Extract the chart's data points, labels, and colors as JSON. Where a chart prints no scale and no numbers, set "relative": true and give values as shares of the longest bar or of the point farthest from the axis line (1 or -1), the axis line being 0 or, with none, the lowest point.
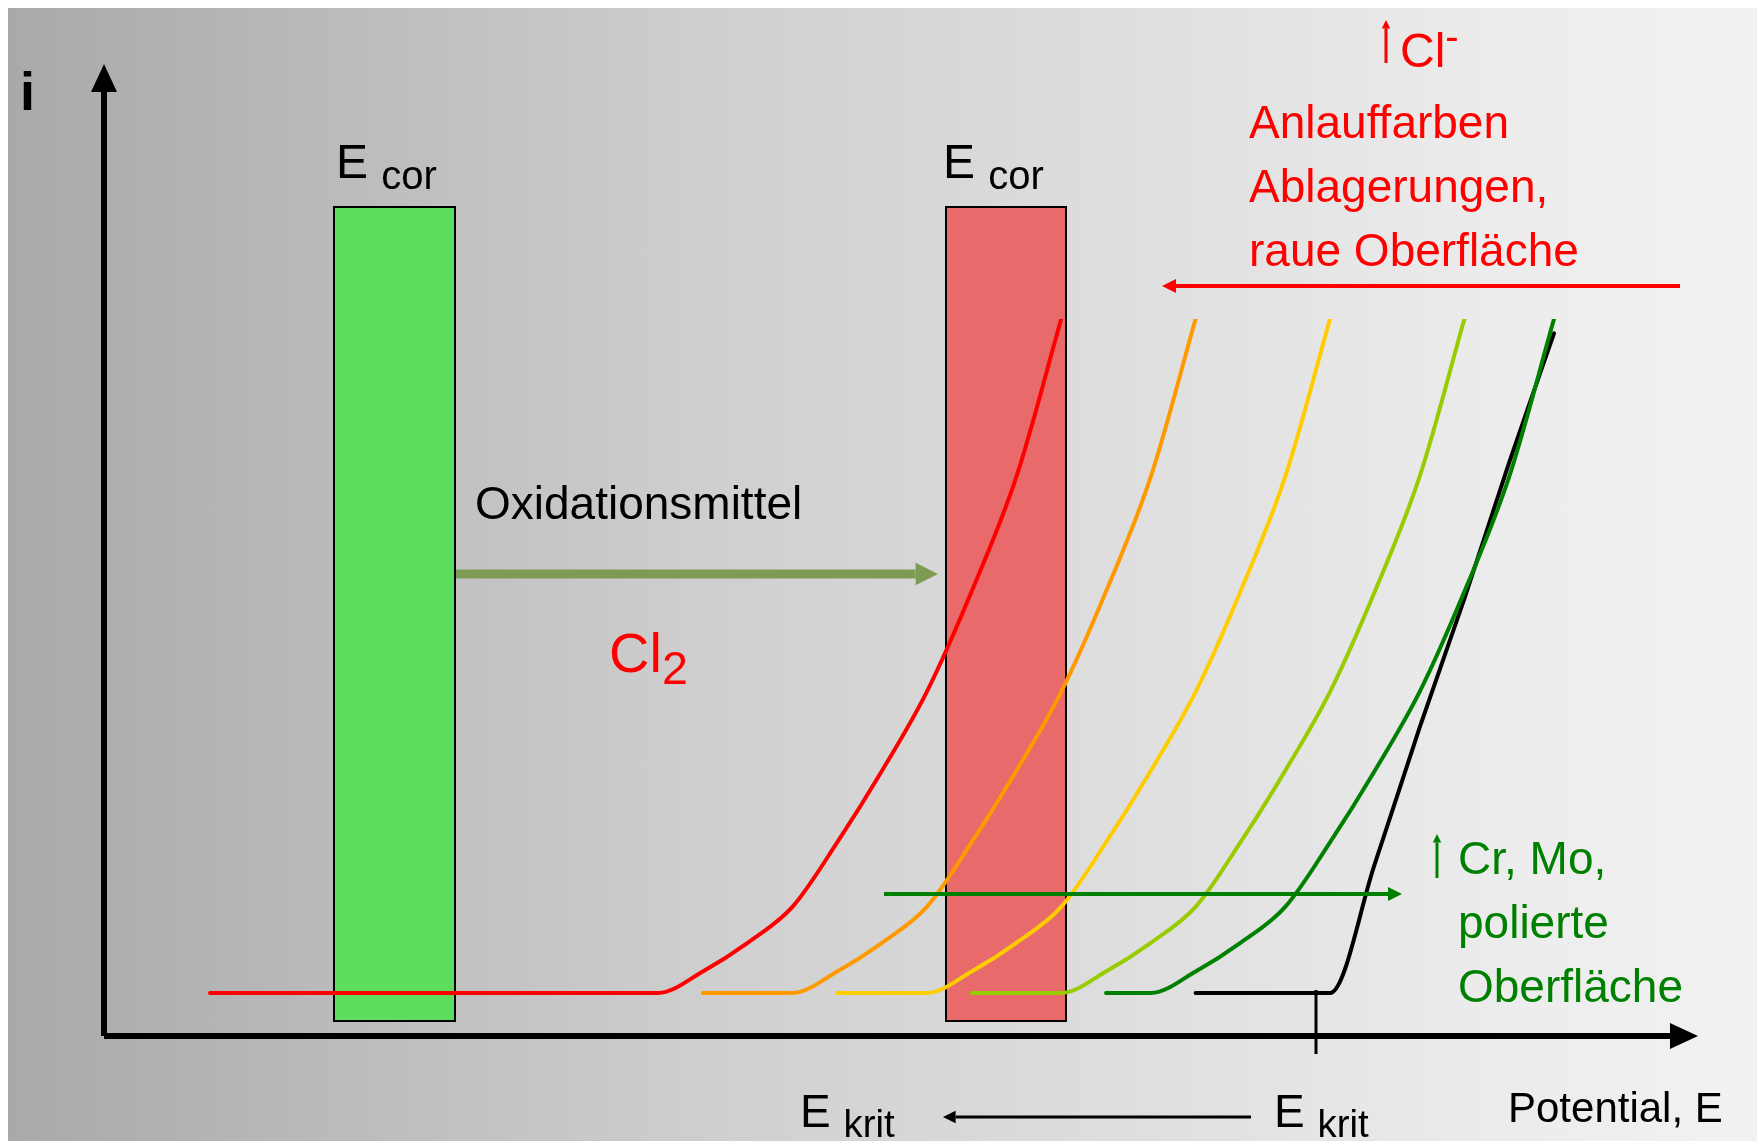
{
  "chart_data": {
    "type": "line",
    "relative": true,
    "xlabel": "Potential, E",
    "ylabel": "i",
    "marker": "none",
    "line_style": "solid",
    "categories": [
      null,
      null,
      null,
      null,
      null,
      null,
      null,
      null,
      null,
      null,
      null,
      null,
      null,
      null,
      null,
      null,
      null,
      null,
      null,
      null,
      null,
      null,
      null,
      null,
      null,
      null,
      null,
      null,
      null,
      null,
      null
    ],
    "series": [
      {
        "color": "#ff0000",
        "values": [
          0.06,
          0.06,
          0.06,
          0.06,
          0.06,
          0.06,
          0.06,
          0.06,
          0.06,
          0.06,
          0.06,
          0.09,
          0.13,
          0.18,
          0.27,
          0.37,
          0.48,
          0.62,
          0.78,
          1.0,
          null,
          null,
          null,
          null,
          null,
          null,
          null,
          null,
          null,
          null,
          null
        ]
      },
      {
        "color": "#ff9900",
        "values": [
          null,
          null,
          null,
          null,
          null,
          null,
          null,
          null,
          null,
          null,
          null,
          0.06,
          0.06,
          0.06,
          0.09,
          0.13,
          0.18,
          0.27,
          0.37,
          0.48,
          0.62,
          0.78,
          1.0,
          null,
          null,
          null,
          null,
          null,
          null,
          null,
          null
        ]
      },
      {
        "color": "#ffcc00",
        "values": [
          null,
          null,
          null,
          null,
          null,
          null,
          null,
          null,
          null,
          null,
          null,
          null,
          null,
          null,
          0.06,
          0.06,
          0.06,
          0.09,
          0.13,
          0.18,
          0.27,
          0.37,
          0.48,
          0.62,
          0.78,
          1.0,
          null,
          null,
          null,
          null,
          null
        ]
      },
      {
        "color": "#99cc00",
        "values": [
          null,
          null,
          null,
          null,
          null,
          null,
          null,
          null,
          null,
          null,
          null,
          null,
          null,
          null,
          null,
          null,
          null,
          0.06,
          0.06,
          0.06,
          0.09,
          0.13,
          0.18,
          0.27,
          0.37,
          0.48,
          0.62,
          0.78,
          1.0,
          null,
          null
        ]
      },
      {
        "color": "#008000",
        "values": [
          null,
          null,
          null,
          null,
          null,
          null,
          null,
          null,
          null,
          null,
          null,
          null,
          null,
          null,
          null,
          null,
          null,
          null,
          null,
          null,
          0.06,
          0.06,
          0.09,
          0.13,
          0.18,
          0.27,
          0.37,
          0.48,
          0.62,
          0.78,
          1.0
        ]
      },
      {
        "color": "#000000",
        "values": [
          null,
          null,
          null,
          null,
          null,
          null,
          null,
          null,
          null,
          null,
          null,
          null,
          null,
          null,
          null,
          null,
          null,
          null,
          null,
          null,
          null,
          null,
          0.06,
          0.06,
          0.06,
          0.06,
          0.24,
          0.43,
          0.61,
          0.8,
          0.98
        ]
      }
    ],
    "annotations": [
      "E $_{cor}$",
      "E $_{cor}$",
      "Oxidationsmittel",
      "Cl$_{2}$",
      "Cl$^{-}$",
      "Anlauffarben\nAblagerungen,\nraue Oberfläche",
      "Cr, Mo,\npolierte Oberfläche",
      "E $_{krit}$",
      "E $_{krit}$"
    ]
  }
}
